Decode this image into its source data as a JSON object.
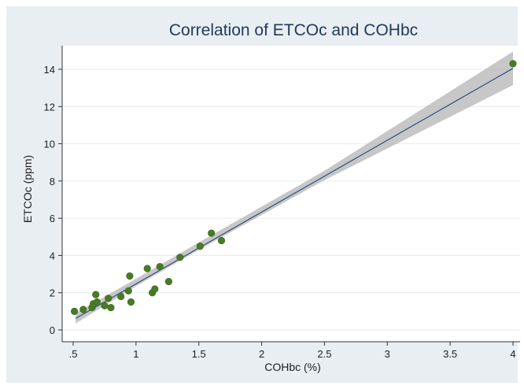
{
  "chart_data": {
    "type": "scatter",
    "title": "Correlation of ETCOc and COHbc",
    "xlabel": "COHbc (%)",
    "ylabel": "ETCOc (ppm)",
    "xlim": [
      0.5,
      4
    ],
    "ylim": [
      0,
      14
    ],
    "x_ticks": [
      ".5",
      "1",
      "1.5",
      "2",
      "2.5",
      "3",
      "3.5",
      "4"
    ],
    "y_ticks": [
      "0",
      "2",
      "4",
      "6",
      "8",
      "10",
      "12",
      "14"
    ],
    "grid": true,
    "legend": "none",
    "series": [
      {
        "kind": "points",
        "points": [
          [
            0.51,
            1.0
          ],
          [
            0.58,
            1.1
          ],
          [
            0.65,
            1.2
          ],
          [
            0.66,
            1.4
          ],
          [
            0.68,
            1.9
          ],
          [
            0.69,
            1.5
          ],
          [
            0.75,
            1.3
          ],
          [
            0.78,
            1.7
          ],
          [
            0.8,
            1.2
          ],
          [
            0.88,
            1.8
          ],
          [
            0.94,
            2.1
          ],
          [
            0.95,
            2.9
          ],
          [
            0.96,
            1.5
          ],
          [
            1.09,
            3.3
          ],
          [
            1.13,
            2.0
          ],
          [
            1.15,
            2.2
          ],
          [
            1.19,
            3.4
          ],
          [
            1.26,
            2.6
          ],
          [
            1.35,
            3.9
          ],
          [
            1.51,
            4.5
          ],
          [
            1.6,
            5.2
          ],
          [
            1.68,
            4.8
          ],
          [
            4.0,
            14.3
          ]
        ]
      },
      {
        "kind": "fit_line",
        "x": [
          0.52,
          4.0
        ],
        "y": [
          0.62,
          14.05
        ]
      },
      {
        "kind": "confidence_band",
        "x": [
          0.52,
          1.0,
          1.5,
          2.5,
          4.0
        ],
        "lower": [
          0.35,
          2.35,
          4.3,
          8.05,
          13.15
        ],
        "upper": [
          0.9,
          2.75,
          4.7,
          8.55,
          14.95
        ]
      }
    ],
    "colors": {
      "outer_background": "#e9eef2",
      "plot_background": "#ffffff",
      "grid": "#e6eaee",
      "points": "#4a7a26",
      "fit_line": "#2b4f81",
      "band": "#b4b4b4",
      "title": "#1e3a5c"
    }
  }
}
